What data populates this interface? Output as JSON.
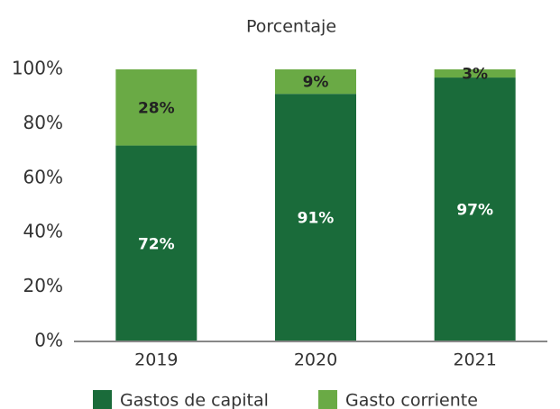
{
  "chart_data": {
    "type": "stacked_bar",
    "title": "Porcentaje",
    "categories": [
      "2019",
      "2020",
      "2021"
    ],
    "series": [
      {
        "name": "Gastos de capital",
        "color": "#1a6b3a",
        "values": [
          72,
          91,
          97
        ],
        "value_labels": [
          "72%",
          "91%",
          "97%"
        ]
      },
      {
        "name": "Gasto corriente",
        "color": "#6aaa45",
        "values": [
          28,
          9,
          3
        ],
        "value_labels": [
          "28%",
          "9%",
          "3%"
        ]
      }
    ],
    "ylim": [
      0,
      100
    ],
    "yticks": [
      {
        "value": 0,
        "label": "0%"
      },
      {
        "value": 20,
        "label": "20%"
      },
      {
        "value": 40,
        "label": "40%"
      },
      {
        "value": 60,
        "label": "60%"
      },
      {
        "value": 80,
        "label": "80%"
      },
      {
        "value": 100,
        "label": "100%"
      }
    ],
    "grid": false,
    "legend": "bottom"
  }
}
